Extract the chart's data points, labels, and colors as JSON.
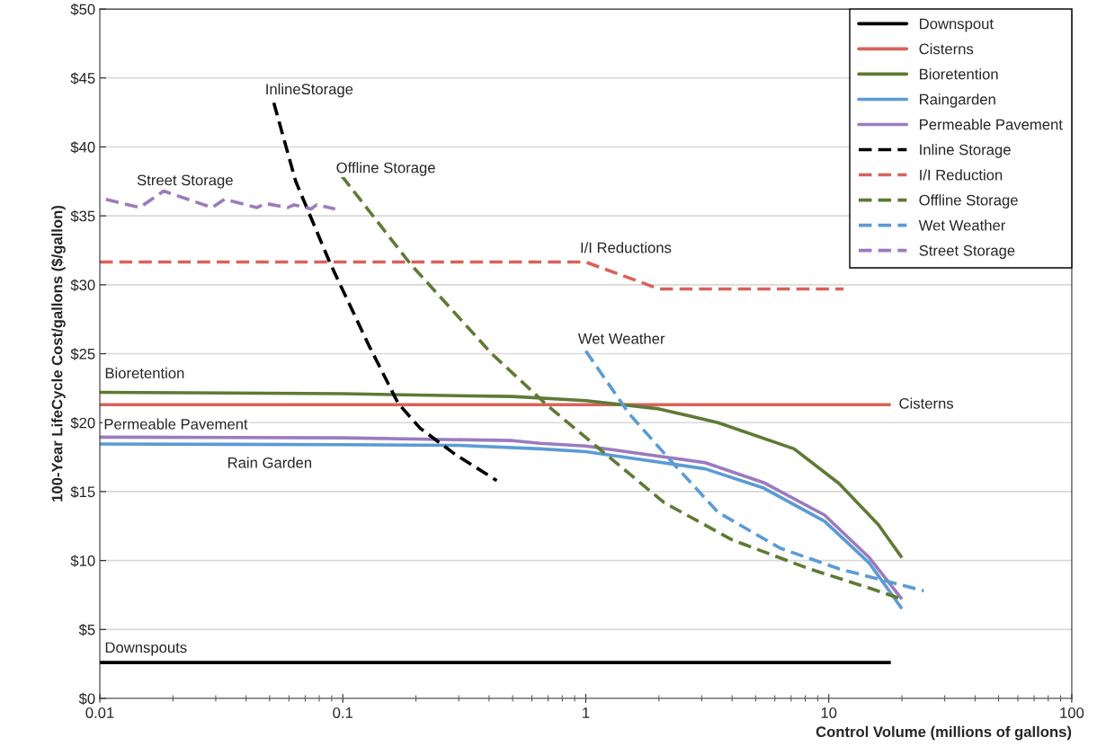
{
  "chart_data": {
    "type": "line",
    "xlabel": "Control Volume (millions of gallons)",
    "ylabel": "100-Year LifeCycle Cost/gallons ($/gallon)",
    "log": "x",
    "xlim": [
      0.01,
      100
    ],
    "xticks": [
      0.01,
      0.1,
      1,
      10,
      100
    ],
    "ylim": [
      0,
      50
    ],
    "yticks": [
      {
        "value": 0,
        "label": "$0"
      },
      {
        "value": 5,
        "label": "$5"
      },
      {
        "value": 10,
        "label": "$10"
      },
      {
        "value": 15,
        "label": "$15"
      },
      {
        "value": 20,
        "label": "$20"
      },
      {
        "value": 25,
        "label": "$25"
      },
      {
        "value": 30,
        "label": "$30"
      },
      {
        "value": 35,
        "label": "$35"
      },
      {
        "value": 40,
        "label": "$40"
      },
      {
        "value": 45,
        "label": "$45"
      },
      {
        "value": 50,
        "label": "$50"
      }
    ],
    "grid": "y",
    "legend": "top right",
    "marker": "none",
    "series": [
      {
        "name": "Downspout",
        "color": "#000000",
        "line_style": "solid",
        "x": [
          0.01,
          18
        ],
        "values": [
          2.6,
          2.6
        ]
      },
      {
        "name": "Cisterns",
        "color": "#d9625a",
        "line_style": "solid",
        "x": [
          0.01,
          18
        ],
        "values": [
          21.3,
          21.3
        ]
      },
      {
        "name": "Bioretention",
        "color": "#5f7a34",
        "line_style": "solid",
        "x": [
          0.01,
          0.1,
          0.2,
          0.5,
          1,
          2,
          3.5,
          7.2,
          11,
          16,
          20
        ],
        "values": [
          22.2,
          22.1,
          22.0,
          21.9,
          21.6,
          21.0,
          20.0,
          18.1,
          15.6,
          12.6,
          10.2
        ]
      },
      {
        "name": "Raingarden",
        "color": "#5b9bd5",
        "line_style": "solid",
        "x": [
          0.01,
          0.1,
          0.3,
          0.65,
          1,
          3.1,
          5.4,
          9.6,
          14.7,
          20
        ],
        "values": [
          18.45,
          18.4,
          18.35,
          18.1,
          17.9,
          16.65,
          15.25,
          12.85,
          9.8,
          6.5
        ]
      },
      {
        "name": "Permeable Pavement",
        "color": "#9b7bbf",
        "line_style": "solid",
        "x": [
          0.01,
          0.1,
          0.5,
          0.65,
          1,
          3.1,
          5.4,
          9.6,
          14.7,
          20
        ],
        "values": [
          18.95,
          18.9,
          18.7,
          18.5,
          18.3,
          17.1,
          15.65,
          13.3,
          10.2,
          7.2
        ]
      },
      {
        "name": "Inline Storage",
        "color": "#000000",
        "line_style": "dashed",
        "x": [
          0.052,
          0.064,
          0.089,
          0.128,
          0.169,
          0.208,
          0.29,
          0.43
        ],
        "values": [
          43.2,
          37.5,
          31.5,
          25.6,
          21.4,
          19.6,
          17.7,
          15.8
        ]
      },
      {
        "name": "I/I Reduction",
        "color": "#d9625a",
        "line_style": "dashed",
        "x": [
          0.01,
          1.0,
          2.0,
          11.5
        ],
        "values": [
          31.65,
          31.65,
          29.7,
          29.7
        ]
      },
      {
        "name": "Offline Storage",
        "color": "#5f7a34",
        "line_style": "dashed",
        "x": [
          0.099,
          0.19,
          0.41,
          0.7,
          1.27,
          2.1,
          4.0,
          8.3,
          14.7,
          20
        ],
        "values": [
          37.9,
          31.5,
          25.0,
          21.2,
          17.4,
          14.2,
          11.5,
          9.4,
          8.0,
          7.2
        ]
      },
      {
        "name": "Wet Weather",
        "color": "#5b9bd5",
        "line_style": "dashed",
        "x": [
          1.0,
          1.5,
          2.3,
          3.5,
          6.3,
          11,
          24.6
        ],
        "values": [
          25.2,
          20.7,
          17.0,
          13.5,
          10.9,
          9.4,
          7.8
        ]
      },
      {
        "name": "Street Storage",
        "color": "#9b7bbf",
        "line_style": "dashed",
        "x": [
          0.0106,
          0.0146,
          0.0183,
          0.029,
          0.0326,
          0.0443,
          0.048,
          0.0594,
          0.063,
          0.074,
          0.078,
          0.093
        ],
        "values": [
          36.2,
          35.6,
          36.8,
          35.6,
          36.2,
          35.6,
          35.9,
          35.6,
          35.8,
          35.5,
          35.8,
          35.5
        ]
      }
    ],
    "annotations": [
      "InlineStorage",
      "Street Storage",
      "Offline Storage",
      "I/I Reductions",
      "Wet Weather",
      "Bioretention",
      "Cisterns",
      "Permeable Pavement",
      "Rain Garden",
      "Downspouts"
    ]
  }
}
